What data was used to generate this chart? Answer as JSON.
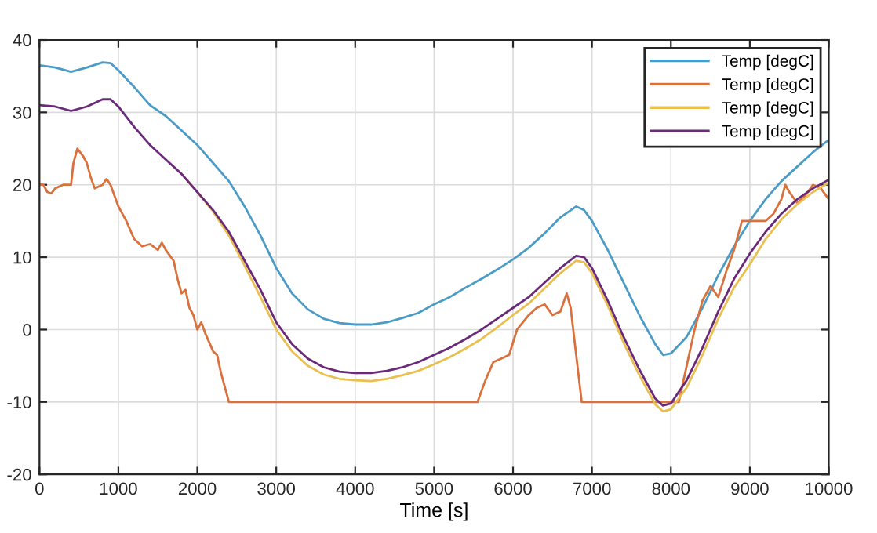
{
  "chart_data": {
    "type": "line",
    "xlabel": "Time [s]",
    "xlim": [
      0,
      10000
    ],
    "xticks": [
      0,
      1000,
      2000,
      3000,
      4000,
      5000,
      6000,
      7000,
      8000,
      9000,
      10000
    ],
    "ylim": [
      -20,
      40
    ],
    "yticks": [
      -20,
      -10,
      0,
      10,
      20,
      30,
      40
    ],
    "grid": true,
    "legend": "top right",
    "line_style": "solid",
    "marker": "none",
    "series": [
      {
        "name": "Temp [degC]",
        "color": "#4a9cc6",
        "x": [
          0,
          200,
          400,
          600,
          800,
          900,
          1000,
          1200,
          1400,
          1600,
          1800,
          2000,
          2200,
          2400,
          2600,
          2800,
          3000,
          3200,
          3400,
          3600,
          3800,
          4000,
          4200,
          4400,
          4600,
          4800,
          5000,
          5200,
          5400,
          5600,
          5800,
          6000,
          6200,
          6400,
          6600,
          6800,
          6900,
          7000,
          7200,
          7400,
          7600,
          7800,
          7900,
          8000,
          8200,
          8400,
          8600,
          8800,
          9000,
          9200,
          9400,
          9600,
          9800,
          10000
        ],
        "values": [
          36.5,
          36.2,
          35.6,
          36.2,
          36.9,
          36.8,
          35.8,
          33.5,
          31,
          29.5,
          27.5,
          25.5,
          23,
          20.5,
          17,
          13,
          8.5,
          5,
          2.8,
          1.5,
          0.9,
          0.7,
          0.7,
          1,
          1.6,
          2.3,
          3.5,
          4.5,
          5.8,
          7,
          8.3,
          9.7,
          11.3,
          13.3,
          15.5,
          17,
          16.5,
          15,
          11,
          6.5,
          2,
          -2,
          -3.5,
          -3.3,
          -1,
          3,
          7.5,
          11.5,
          15,
          18,
          20.5,
          22.5,
          24.5,
          26.2
        ]
      },
      {
        "name": "Temp [degC]",
        "color": "#d9713c",
        "x": [
          0,
          50,
          100,
          150,
          200,
          300,
          400,
          430,
          480,
          550,
          600,
          650,
          700,
          800,
          850,
          900,
          1000,
          1100,
          1200,
          1300,
          1400,
          1500,
          1550,
          1600,
          1700,
          1750,
          1800,
          1850,
          1900,
          1950,
          2000,
          2050,
          2100,
          2200,
          2250,
          2300,
          2400,
          5550,
          5650,
          5750,
          5850,
          5950,
          6050,
          6200,
          6300,
          6400,
          6500,
          6600,
          6680,
          6730,
          6870,
          8100,
          8200,
          8300,
          8400,
          8500,
          8600,
          8700,
          8800,
          8900,
          9000,
          9200,
          9300,
          9400,
          9450,
          9500,
          9600,
          9700,
          9800,
          9900,
          10000
        ],
        "values": [
          20,
          20,
          19,
          18.8,
          19.5,
          20,
          20,
          23,
          25,
          24,
          23,
          21,
          19.5,
          20,
          20.8,
          20,
          17,
          15,
          12.5,
          11.5,
          11.8,
          11,
          12,
          11,
          9.5,
          7,
          5,
          5.5,
          3,
          2,
          0,
          1,
          -0.5,
          -3,
          -3.5,
          -6,
          -10,
          -10,
          -7,
          -4.5,
          -4,
          -3.5,
          0,
          2,
          3,
          3.5,
          2,
          2.5,
          5,
          3,
          -10,
          -10,
          -5,
          0,
          4,
          6,
          4.5,
          8,
          11,
          15,
          15,
          15,
          16,
          18,
          20,
          19,
          17.5,
          18.5,
          20,
          19.5,
          18
        ]
      },
      {
        "name": "Temp [degC]",
        "color": "#eabf4f",
        "x": [
          1800,
          2000,
          2200,
          2400,
          2600,
          2800,
          3000,
          3200,
          3400,
          3600,
          3800,
          4000,
          4200,
          4400,
          4600,
          4800,
          5000,
          5200,
          5400,
          5600,
          5800,
          6000,
          6200,
          6400,
          6600,
          6800,
          6900,
          7000,
          7200,
          7400,
          7600,
          7800,
          7900,
          8000,
          8200,
          8400,
          8600,
          8800,
          9000,
          9200,
          9400,
          9600,
          9800,
          10000
        ],
        "values": [
          21.5,
          19,
          16.3,
          13,
          8.8,
          4.5,
          0,
          -3,
          -5,
          -6.2,
          -6.8,
          -7,
          -7.1,
          -6.8,
          -6.3,
          -5.7,
          -4.8,
          -3.8,
          -2.6,
          -1.3,
          0.3,
          2,
          3.6,
          5.7,
          7.8,
          9.5,
          9.3,
          7.8,
          3.3,
          -1.8,
          -6.3,
          -10.3,
          -11.3,
          -11,
          -8,
          -3.5,
          1.5,
          5.8,
          9,
          12.5,
          15.2,
          17.3,
          19,
          20.3
        ]
      },
      {
        "name": "Temp [degC]",
        "color": "#6a2a7a",
        "x": [
          0,
          200,
          400,
          600,
          800,
          900,
          1000,
          1200,
          1400,
          1600,
          1800,
          2000,
          2200,
          2400,
          2600,
          2800,
          3000,
          3200,
          3400,
          3600,
          3800,
          4000,
          4200,
          4400,
          4600,
          4800,
          5000,
          5200,
          5400,
          5600,
          5800,
          6000,
          6200,
          6400,
          6600,
          6800,
          6900,
          7000,
          7200,
          7400,
          7600,
          7800,
          7900,
          8000,
          8200,
          8400,
          8600,
          8800,
          9000,
          9200,
          9400,
          9600,
          9800,
          10000
        ],
        "values": [
          31,
          30.8,
          30.2,
          30.8,
          31.8,
          31.8,
          30.8,
          28,
          25.5,
          23.5,
          21.5,
          19,
          16.5,
          13.5,
          9.5,
          5.5,
          1,
          -2,
          -4,
          -5.2,
          -5.8,
          -6,
          -6,
          -5.7,
          -5.2,
          -4.5,
          -3.5,
          -2.5,
          -1.3,
          0,
          1.5,
          3,
          4.5,
          6.5,
          8.5,
          10.2,
          10,
          8.5,
          4,
          -1,
          -5.5,
          -9.5,
          -10.5,
          -10.2,
          -7,
          -2.5,
          2.5,
          7,
          10.5,
          13.5,
          16,
          18,
          19.5,
          20.7
        ]
      }
    ]
  }
}
